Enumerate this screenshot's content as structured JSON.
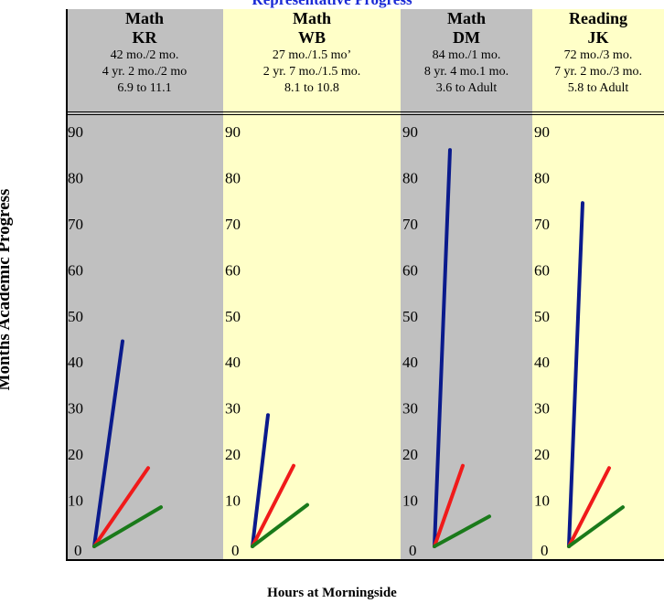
{
  "title": "Representative Progress",
  "ylabel": "Months Academic Progress",
  "xlabel": "Hours at Morningside",
  "chart_data": {
    "type": "line",
    "title": "Representative Progress",
    "xlabel": "Hours at Morningside",
    "ylabel": "Months Academic Progress",
    "ylim": [
      0,
      90
    ],
    "yticks": [
      0,
      10,
      20,
      30,
      40,
      50,
      60,
      70,
      80,
      90
    ],
    "series_colors": [
      "#0a1a8c",
      "#f01a1a",
      "#1a7a1a"
    ],
    "panels": [
      {
        "subject": "Math",
        "student": "KR",
        "lines": [
          "42 mo./2 mo.",
          "4 yr. 2 mo./2 mo",
          "6.9 to 11.1"
        ],
        "background": "#c0c0c0",
        "series": [
          {
            "values": [
              0,
              44.5
            ]
          },
          {
            "values": [
              0,
              17
            ]
          },
          {
            "values": [
              0,
              8.5
            ]
          }
        ]
      },
      {
        "subject": "Math",
        "student": "WB",
        "lines": [
          "27 mo./1.5 mo’",
          "2 yr. 7 mo./1.5 mo.",
          "8.1 to 10.8"
        ],
        "background": "#ffffc8",
        "series": [
          {
            "values": [
              0,
              28.5
            ]
          },
          {
            "values": [
              0,
              17.5
            ]
          },
          {
            "values": [
              0,
              9
            ]
          }
        ]
      },
      {
        "subject": "Math",
        "student": "DM",
        "lines": [
          "84 mo./1 mo.",
          "8 yr. 4 mo.1 mo.",
          "3.6 to Adult"
        ],
        "background": "#c0c0c0",
        "series": [
          {
            "values": [
              0,
              86
            ]
          },
          {
            "values": [
              0,
              17.5
            ]
          },
          {
            "values": [
              0,
              6.5
            ]
          }
        ]
      },
      {
        "subject": "Reading",
        "student": "JK",
        "lines": [
          "72 mo./3 mo.",
          "7 yr. 2 mo./3 mo.",
          "5.8 to Adult"
        ],
        "background": "#ffffc8",
        "series": [
          {
            "values": [
              0,
              74.5
            ]
          },
          {
            "values": [
              0,
              17
            ]
          },
          {
            "values": [
              0,
              8.5
            ]
          }
        ]
      }
    ]
  }
}
